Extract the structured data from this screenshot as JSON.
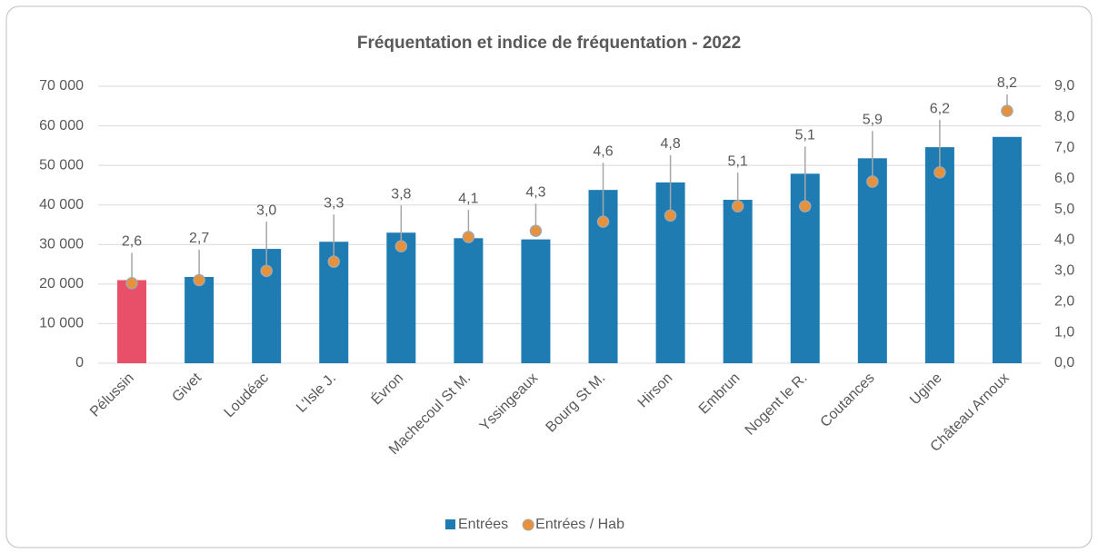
{
  "chart_data": {
    "type": "bar",
    "title": "Fréquentation et indice de fréquentation - 2022",
    "categories": [
      "Pélussin",
      "Givet",
      "Loudéac",
      "L'Isle J.",
      "Évron",
      "Machecoul St M.",
      "Yssingeaux",
      "Bourg St M.",
      "Hirson",
      "Embrun",
      "Nogent le R.",
      "Coutances",
      "Ugine",
      "Château Arnoux"
    ],
    "series": [
      {
        "name": "Entrées",
        "color": "#1f7cb2",
        "colors": [
          "#e8506a",
          "#1f7cb2",
          "#1f7cb2",
          "#1f7cb2",
          "#1f7cb2",
          "#1f7cb2",
          "#1f7cb2",
          "#1f7cb2",
          "#1f7cb2",
          "#1f7cb2",
          "#1f7cb2",
          "#1f7cb2",
          "#1f7cb2",
          "#1f7cb2"
        ],
        "values": [
          21000,
          21800,
          28900,
          30700,
          33000,
          31600,
          31300,
          43800,
          45700,
          41300,
          47900,
          51800,
          54600,
          57200
        ]
      },
      {
        "name": "Entrées / Hab",
        "color": "#e8913b",
        "type": "scatter",
        "axis": "y2",
        "values": [
          2.6,
          2.7,
          3.0,
          3.3,
          3.8,
          4.1,
          4.3,
          4.6,
          4.8,
          5.1,
          5.1,
          5.9,
          6.2,
          8.2
        ],
        "value_labels": [
          "2,6",
          "2,7",
          "3,0",
          "3,3",
          "3,8",
          "4,1",
          "4,3",
          "4,6",
          "4,8",
          "5,1",
          "5,1",
          "5,9",
          "6,2",
          "8,2"
        ]
      }
    ],
    "ylim": [
      0,
      70000
    ],
    "yticks": [
      0,
      {
        "value": 10000,
        "label": "10 000"
      },
      {
        "value": 20000,
        "label": "20 000"
      },
      {
        "value": 30000,
        "label": "30 000"
      },
      {
        "value": 40000,
        "label": "40 000"
      },
      {
        "value": 50000,
        "label": "50 000"
      },
      {
        "value": 60000,
        "label": "60 000"
      },
      {
        "value": 70000,
        "label": "70 000"
      }
    ],
    "y2lim": [
      0,
      9
    ],
    "y2ticks": [
      {
        "value": 0,
        "label": "0,0"
      },
      {
        "value": 1,
        "label": "1,0"
      },
      {
        "value": 2,
        "label": "2,0"
      },
      {
        "value": 3,
        "label": "3,0"
      },
      {
        "value": 4,
        "label": "4,0"
      },
      {
        "value": 5,
        "label": "5,0"
      },
      {
        "value": 6,
        "label": "6,0"
      },
      {
        "value": 7,
        "label": "7,0"
      },
      {
        "value": 8,
        "label": "8,0"
      },
      {
        "value": 9,
        "label": "9,0"
      }
    ],
    "grid": true,
    "legend": "bottom"
  }
}
